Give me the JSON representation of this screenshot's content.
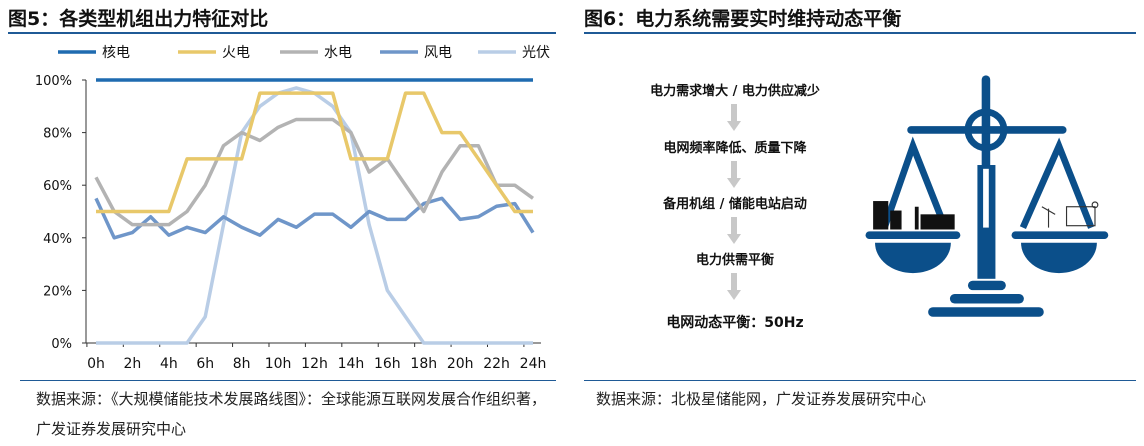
{
  "left": {
    "title": "图5：各类型机组出力特征对比",
    "source": "数据来源：《大规模储能技术发展路线图》：全球能源互联网发展合作组织著，广发证券发展研究中心"
  },
  "right": {
    "title": "图6：电力系统需要实时维持动态平衡",
    "steps": [
      "电力需求增大 / 电力供应减少",
      "电网频率降低、质量下降",
      "备用机组 / 储能电站启动",
      "电力供需平衡",
      "电网动态平衡：50Hz"
    ],
    "source": "数据来源：北极星储能网，广发证券发展研究中心",
    "accent": "#0b4f8a"
  },
  "chart_data": {
    "type": "line",
    "x": [
      0,
      1,
      2,
      3,
      4,
      5,
      6,
      7,
      8,
      9,
      10,
      11,
      12,
      13,
      14,
      15,
      16,
      17,
      18,
      19,
      20,
      21,
      22,
      23,
      24
    ],
    "xticks": [
      "0h",
      "2h",
      "4h",
      "6h",
      "8h",
      "10h",
      "12h",
      "14h",
      "16h",
      "18h",
      "20h",
      "22h",
      "24h"
    ],
    "yticks": [
      "0%",
      "20%",
      "40%",
      "60%",
      "80%",
      "100%"
    ],
    "ylim": [
      0,
      100
    ],
    "legend_position": "top",
    "series": [
      {
        "name": "核电",
        "color": "#1f6bb0",
        "values": [
          100,
          100,
          100,
          100,
          100,
          100,
          100,
          100,
          100,
          100,
          100,
          100,
          100,
          100,
          100,
          100,
          100,
          100,
          100,
          100,
          100,
          100,
          100,
          100,
          100
        ]
      },
      {
        "name": "火电",
        "color": "#e8c86a",
        "values": [
          50,
          50,
          50,
          50,
          50,
          70,
          70,
          70,
          70,
          95,
          95,
          95,
          95,
          95,
          70,
          70,
          70,
          95,
          95,
          80,
          80,
          70,
          60,
          50,
          50
        ]
      },
      {
        "name": "水电",
        "color": "#b3b3b3",
        "values": [
          63,
          50,
          45,
          45,
          45,
          50,
          60,
          75,
          80,
          77,
          82,
          85,
          85,
          85,
          80,
          65,
          70,
          60,
          50,
          65,
          75,
          75,
          60,
          60,
          55
        ]
      },
      {
        "name": "风电",
        "color": "#6f96c9",
        "values": [
          55,
          40,
          42,
          48,
          41,
          44,
          42,
          48,
          44,
          41,
          47,
          44,
          49,
          49,
          44,
          50,
          47,
          47,
          53,
          55,
          47,
          48,
          52,
          53,
          42
        ]
      },
      {
        "name": "光伏",
        "color": "#b9cde6",
        "values": [
          0,
          0,
          0,
          0,
          0,
          0,
          10,
          45,
          80,
          90,
          95,
          97,
          95,
          90,
          80,
          45,
          20,
          10,
          0,
          0,
          0,
          0,
          0,
          0,
          0
        ]
      }
    ]
  }
}
